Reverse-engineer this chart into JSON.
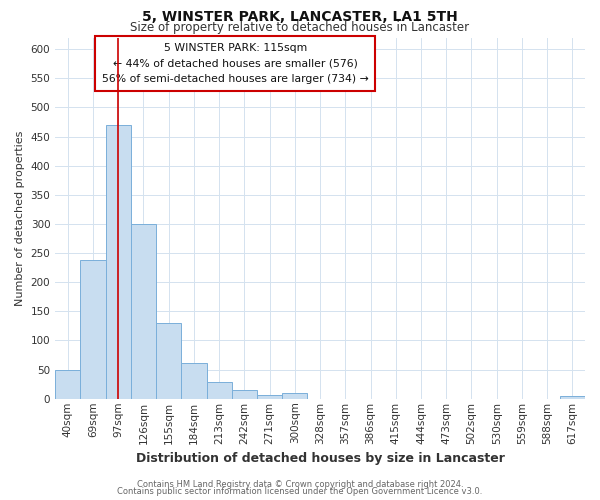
{
  "title": "5, WINSTER PARK, LANCASTER, LA1 5TH",
  "subtitle": "Size of property relative to detached houses in Lancaster",
  "xlabel": "Distribution of detached houses by size in Lancaster",
  "ylabel": "Number of detached properties",
  "bar_color": "#c8ddf0",
  "bar_edge_color": "#7aafda",
  "categories": [
    "40sqm",
    "69sqm",
    "97sqm",
    "126sqm",
    "155sqm",
    "184sqm",
    "213sqm",
    "242sqm",
    "271sqm",
    "300sqm",
    "328sqm",
    "357sqm",
    "386sqm",
    "415sqm",
    "444sqm",
    "473sqm",
    "502sqm",
    "530sqm",
    "559sqm",
    "588sqm",
    "617sqm"
  ],
  "values": [
    50,
    238,
    470,
    300,
    130,
    62,
    29,
    15,
    7,
    10,
    0,
    0,
    0,
    0,
    0,
    0,
    0,
    0,
    0,
    0,
    5
  ],
  "ylim": [
    0,
    620
  ],
  "yticks": [
    0,
    50,
    100,
    150,
    200,
    250,
    300,
    350,
    400,
    450,
    500,
    550,
    600
  ],
  "vline_x_index": 2,
  "vline_color": "#cc0000",
  "annotation_line1": "5 WINSTER PARK: 115sqm",
  "annotation_line2": "← 44% of detached houses are smaller (576)",
  "annotation_line3": "56% of semi-detached houses are larger (734) →",
  "footer_line1": "Contains HM Land Registry data © Crown copyright and database right 2024.",
  "footer_line2": "Contains public sector information licensed under the Open Government Licence v3.0.",
  "background_color": "#ffffff",
  "grid_color": "#d4e2ef",
  "title_fontsize": 10,
  "subtitle_fontsize": 8.5,
  "xlabel_fontsize": 9,
  "ylabel_fontsize": 8,
  "tick_fontsize": 7.5,
  "footer_fontsize": 6
}
